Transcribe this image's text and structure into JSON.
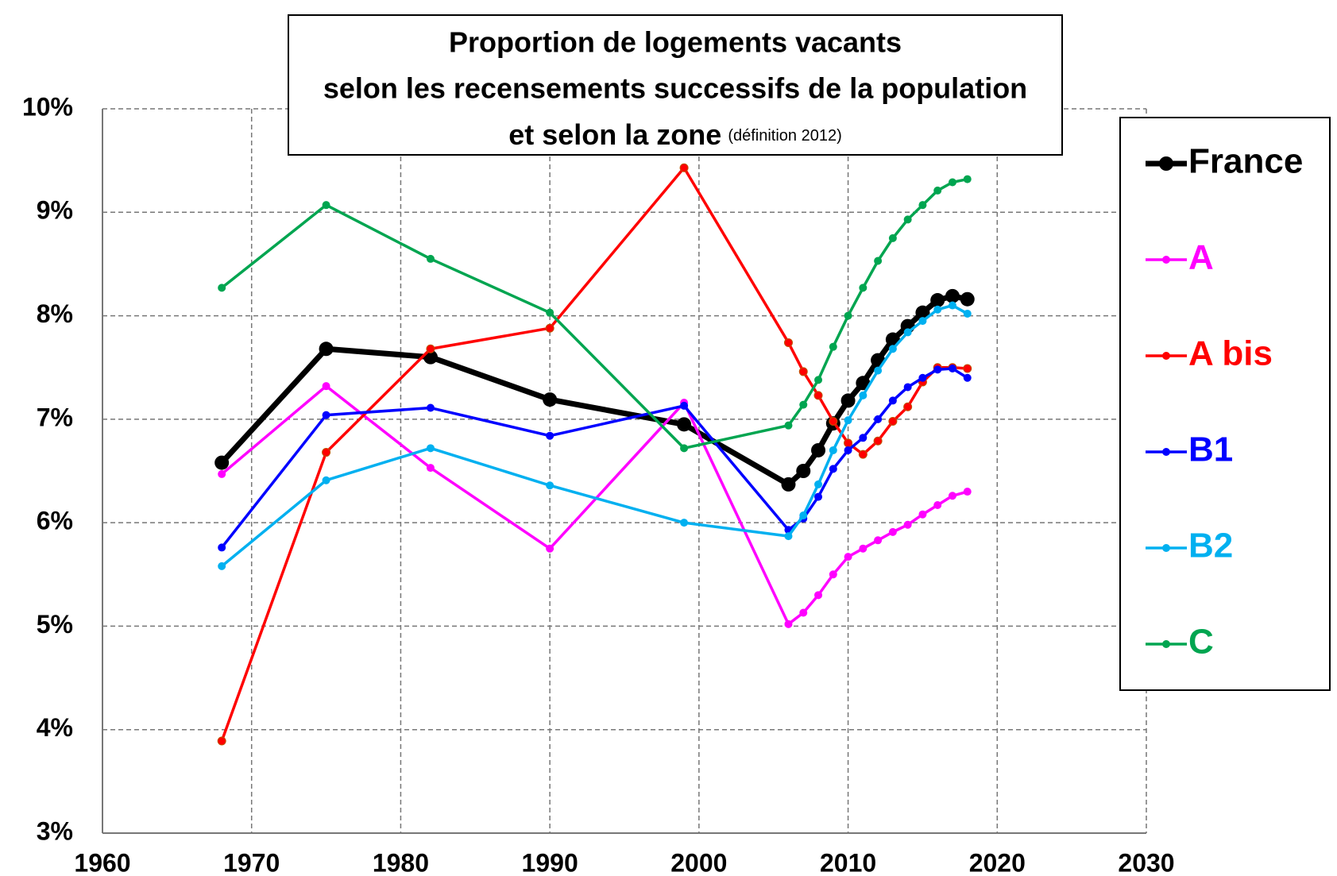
{
  "chart_data": {
    "type": "line",
    "title": [
      "Proportion de logements vacants",
      "selon les recensements successifs de la population",
      "et selon la zone"
    ],
    "title_note": "(définition 2012)",
    "x": [
      1968,
      1975,
      1982,
      1990,
      1999,
      2006,
      2007,
      2008,
      2009,
      2010,
      2011,
      2012,
      2013,
      2014,
      2015,
      2016,
      2017,
      2018
    ],
    "series": [
      {
        "name": "France",
        "color": "#000000",
        "values": [
          6.58,
          7.68,
          7.6,
          7.19,
          6.95,
          6.37,
          6.5,
          6.7,
          6.96,
          7.18,
          7.35,
          7.57,
          7.77,
          7.9,
          8.03,
          8.15,
          8.19,
          8.16
        ]
      },
      {
        "name": "A",
        "color": "#ff00ff",
        "values": [
          6.47,
          7.32,
          6.53,
          5.75,
          7.16,
          5.02,
          5.13,
          5.3,
          5.5,
          5.67,
          5.75,
          5.83,
          5.91,
          5.98,
          6.08,
          6.17,
          6.26,
          6.3
        ]
      },
      {
        "name": "A bis",
        "color": "#ff0000",
        "values": [
          3.89,
          6.68,
          7.68,
          7.88,
          9.43,
          7.74,
          7.46,
          7.23,
          6.98,
          6.77,
          6.66,
          6.79,
          6.98,
          7.12,
          7.36,
          7.5,
          7.5,
          7.49
        ]
      },
      {
        "name": "B1",
        "color": "#0000ff",
        "values": [
          5.76,
          7.04,
          7.11,
          6.84,
          7.13,
          5.93,
          6.04,
          6.25,
          6.52,
          6.7,
          6.82,
          7.0,
          7.18,
          7.31,
          7.4,
          7.48,
          7.49,
          7.4
        ]
      },
      {
        "name": "B2",
        "color": "#00b0f0",
        "values": [
          5.58,
          6.41,
          6.72,
          6.36,
          6.0,
          5.87,
          6.07,
          6.37,
          6.7,
          6.99,
          7.23,
          7.47,
          7.68,
          7.84,
          7.95,
          8.06,
          8.1,
          8.02
        ]
      },
      {
        "name": "C",
        "color": "#00a550",
        "values": [
          8.27,
          9.07,
          8.55,
          8.03,
          6.72,
          6.94,
          7.14,
          7.38,
          7.7,
          8.0,
          8.27,
          8.53,
          8.75,
          8.93,
          9.07,
          9.21,
          9.29,
          9.32
        ]
      }
    ],
    "xlim": [
      1960,
      2030
    ],
    "xticks": [
      1960,
      1970,
      1980,
      1990,
      2000,
      2010,
      2020,
      2030
    ],
    "ylim": [
      3,
      10
    ],
    "yticks": [
      {
        "value": 3,
        "label": "3%"
      },
      {
        "value": 4,
        "label": "4%"
      },
      {
        "value": 5,
        "label": "5%"
      },
      {
        "value": 6,
        "label": "6%"
      },
      {
        "value": 7,
        "label": "7%"
      },
      {
        "value": 8,
        "label": "8%"
      },
      {
        "value": 9,
        "label": "9%"
      },
      {
        "value": 10,
        "label": "10%"
      }
    ],
    "grid": true,
    "legend": "right"
  }
}
